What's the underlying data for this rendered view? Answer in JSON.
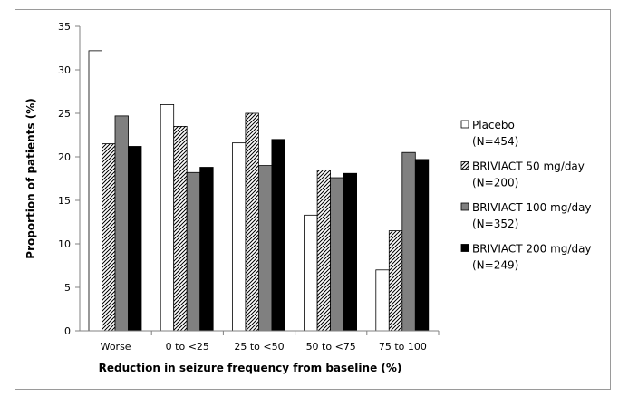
{
  "chart_data": {
    "type": "bar",
    "title": "",
    "xlabel": "Reduction in seizure frequency from baseline (%)",
    "ylabel": "Proportion of patients (%)",
    "ylim": [
      0,
      35
    ],
    "ytick_step": 5,
    "yticks": [
      "0",
      "5",
      "10",
      "15",
      "20",
      "25",
      "30",
      "35"
    ],
    "grid": false,
    "legend_position": "right",
    "categories": [
      "Worse",
      "0 to <25",
      "25 to <50",
      "50 to <75",
      "75 to 100"
    ],
    "series": [
      {
        "name": "Placebo",
        "n_label": "(N=454)",
        "pattern": "white",
        "values": [
          32.2,
          26.0,
          21.6,
          13.3,
          7.0
        ]
      },
      {
        "name": "BRIVIACT 50 mg/day",
        "n_label": "(N=200)",
        "pattern": "hatch",
        "values": [
          21.5,
          23.5,
          25.0,
          18.5,
          11.5
        ]
      },
      {
        "name": "BRIVIACT 100 mg/day",
        "n_label": "(N=352)",
        "pattern": "gray",
        "values": [
          24.7,
          18.2,
          19.0,
          17.6,
          20.5
        ]
      },
      {
        "name": "BRIVIACT 200 mg/day",
        "n_label": "(N=249)",
        "pattern": "black",
        "values": [
          21.2,
          18.8,
          22.0,
          18.1,
          19.7
        ]
      }
    ]
  }
}
